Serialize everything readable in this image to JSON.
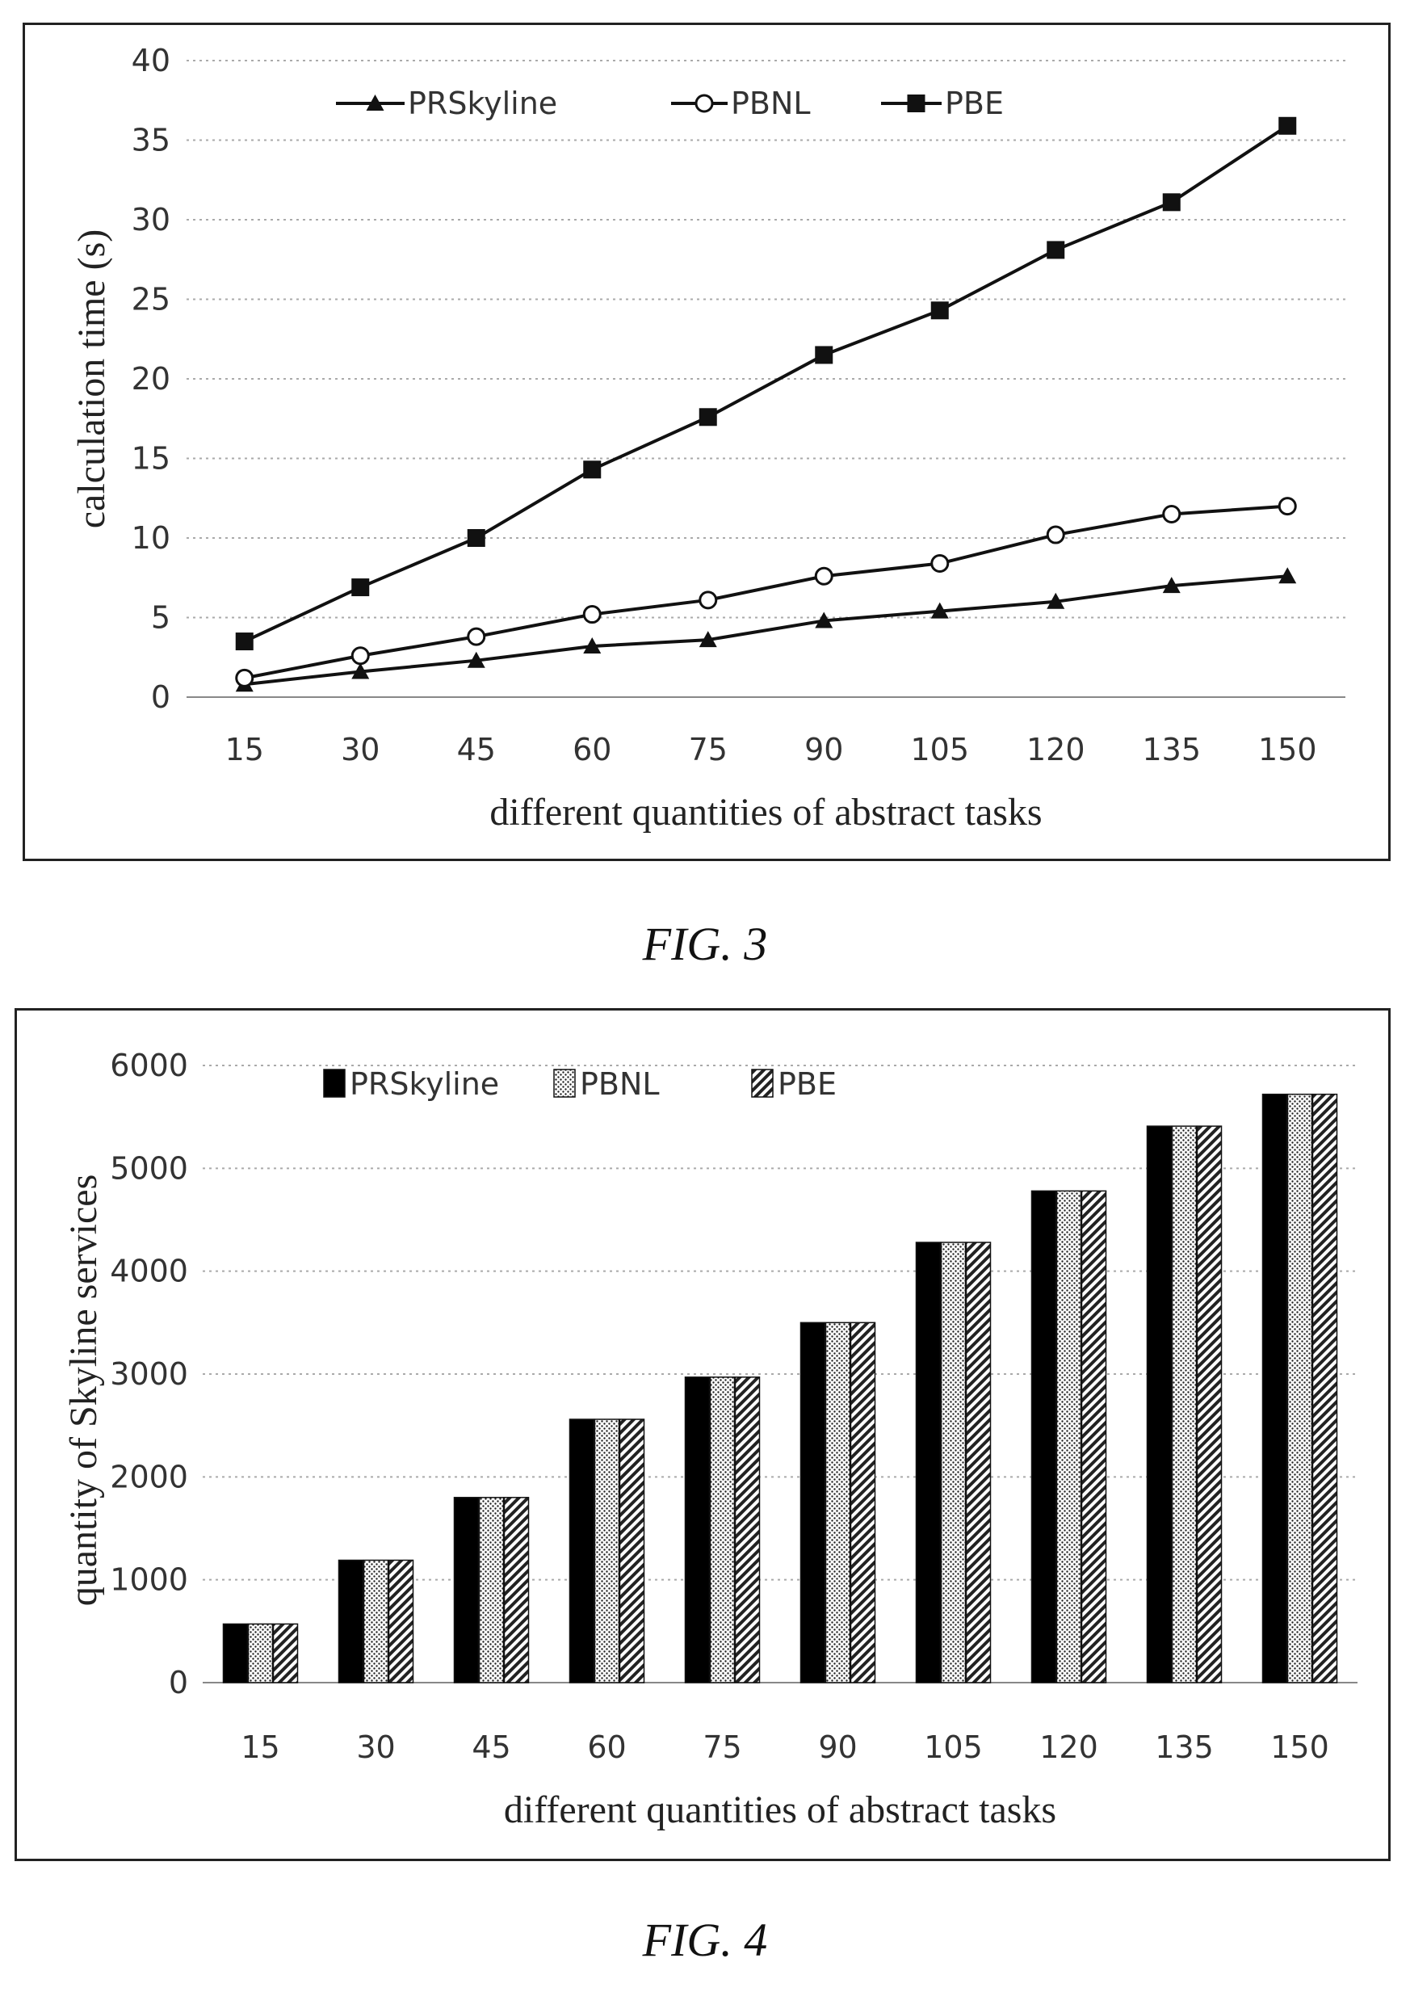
{
  "figures": [
    {
      "caption": "FIG. 3",
      "chart_data": {
        "type": "line",
        "title": "",
        "xlabel": "different quantities of abstract tasks",
        "ylabel": "calculation time (s)",
        "categories": [
          "15",
          "30",
          "45",
          "60",
          "75",
          "90",
          "105",
          "120",
          "135",
          "150"
        ],
        "ylim": [
          0,
          40
        ],
        "yticks": [
          0,
          5,
          10,
          15,
          20,
          25,
          30,
          35,
          40
        ],
        "grid": "horizontal dotted",
        "legend": "top-left, horizontal",
        "series": [
          {
            "name": "PRSkyline",
            "marker": "triangle",
            "values": [
              0.8,
              1.6,
              2.3,
              3.2,
              3.6,
              4.8,
              5.4,
              6.0,
              7.0,
              7.6
            ]
          },
          {
            "name": "PBNL",
            "marker": "open-circle",
            "values": [
              1.2,
              2.6,
              3.8,
              5.2,
              6.1,
              7.6,
              8.4,
              10.2,
              11.5,
              12.0
            ]
          },
          {
            "name": "PBE",
            "marker": "square",
            "values": [
              3.5,
              6.9,
              10.0,
              14.3,
              17.6,
              21.5,
              24.3,
              28.1,
              31.1,
              35.9
            ]
          }
        ]
      }
    },
    {
      "caption": "FIG. 4",
      "chart_data": {
        "type": "bar",
        "title": "",
        "xlabel": "different quantities of abstract tasks",
        "ylabel": "quantity of Skyline services",
        "categories": [
          "15",
          "30",
          "45",
          "60",
          "75",
          "90",
          "105",
          "120",
          "135",
          "150"
        ],
        "ylim": [
          0,
          6000
        ],
        "yticks": [
          0,
          1000,
          2000,
          3000,
          4000,
          5000,
          6000
        ],
        "grid": "horizontal dotted",
        "legend": "top-left, horizontal",
        "series": [
          {
            "name": "PRSkyline",
            "fill": "solid",
            "values": [
              570,
              1190,
              1800,
              2560,
              2970,
              3500,
              4280,
              4780,
              5410,
              5720
            ]
          },
          {
            "name": "PBNL",
            "fill": "dotted",
            "values": [
              570,
              1190,
              1800,
              2560,
              2970,
              3500,
              4280,
              4780,
              5410,
              5720
            ]
          },
          {
            "name": "PBE",
            "fill": "hatched",
            "values": [
              570,
              1190,
              1800,
              2560,
              2970,
              3500,
              4280,
              4780,
              5410,
              5720
            ]
          }
        ]
      }
    }
  ]
}
